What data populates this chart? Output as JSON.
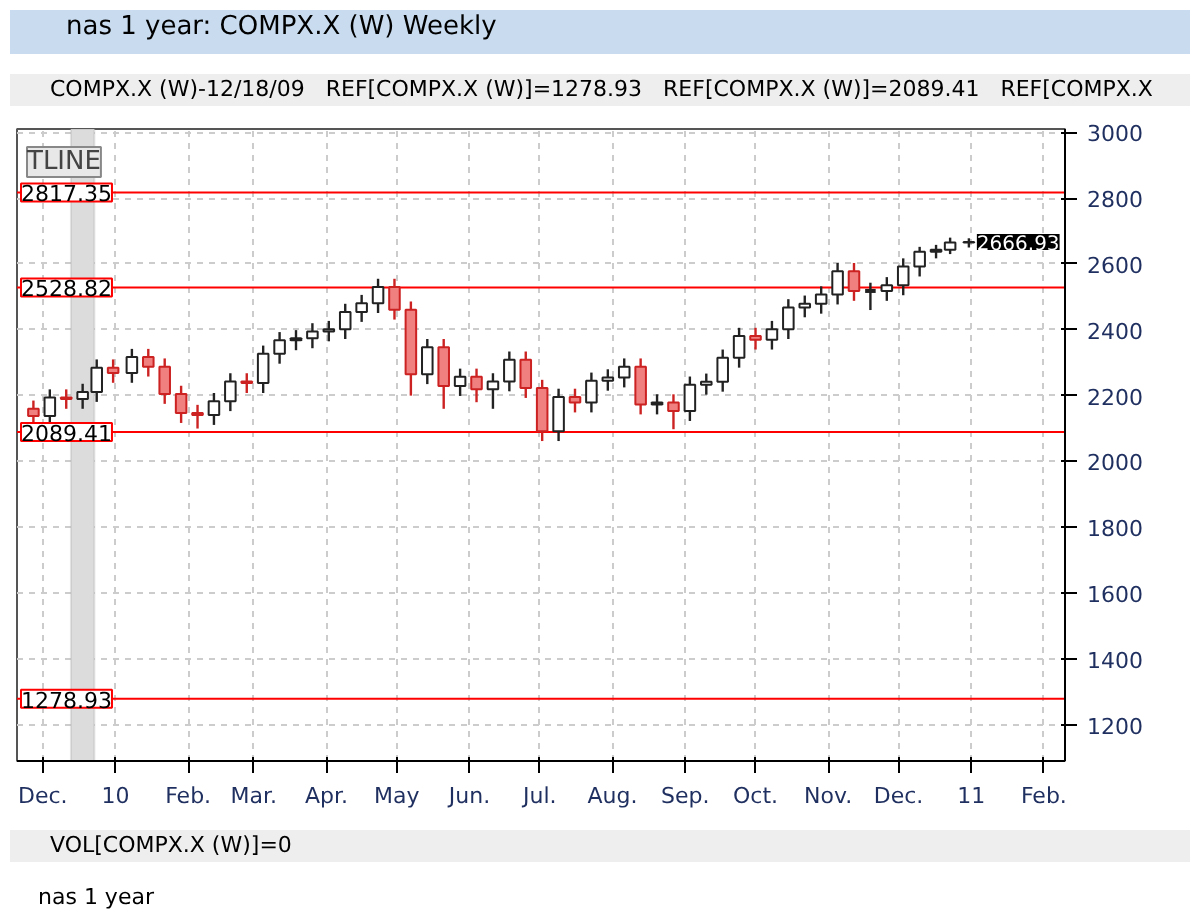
{
  "chart_data": {
    "type": "candlestick",
    "title": "nas 1 year: COMPX.X (W) Weekly",
    "annotations": [
      "COMPX.X (W)-12/18/09",
      "REF[COMPX.X (W)]=1278.93",
      "REF[COMPX.X (W)]=2089.41",
      "REF[COMPX.X",
      "TLINE",
      "VOL[COMPX.X (W)]=0",
      "nas 1 year",
      {
        "text": "2666.93",
        "x": "2010-12-31",
        "y": 2666.93
      }
    ],
    "x": [
      "2009-11-27",
      "2009-12-04",
      "2009-12-11",
      "2009-12-18",
      "2009-12-24",
      "2009-12-31",
      "2010-01-08",
      "2010-01-15",
      "2010-01-22",
      "2010-01-29",
      "2010-02-05",
      "2010-02-12",
      "2010-02-19",
      "2010-02-26",
      "2010-03-05",
      "2010-03-12",
      "2010-03-19",
      "2010-03-26",
      "2010-04-02",
      "2010-04-09",
      "2010-04-16",
      "2010-04-23",
      "2010-04-30",
      "2010-05-07",
      "2010-05-14",
      "2010-05-21",
      "2010-05-28",
      "2010-06-04",
      "2010-06-11",
      "2010-06-18",
      "2010-06-25",
      "2010-07-02",
      "2010-07-09",
      "2010-07-16",
      "2010-07-23",
      "2010-07-30",
      "2010-08-06",
      "2010-08-13",
      "2010-08-20",
      "2010-08-27",
      "2010-09-03",
      "2010-09-10",
      "2010-09-17",
      "2010-09-24",
      "2010-10-01",
      "2010-10-08",
      "2010-10-15",
      "2010-10-22",
      "2010-10-29",
      "2010-11-05",
      "2010-11-12",
      "2010-11-19",
      "2010-11-26",
      "2010-12-03",
      "2010-12-10",
      "2010-12-17",
      "2010-12-23",
      "2010-12-31"
    ],
    "ohlc": [
      [
        2160,
        2185,
        2108,
        2138
      ],
      [
        2138,
        2219,
        2108,
        2194
      ],
      [
        2194,
        2219,
        2160,
        2190
      ],
      [
        2190,
        2236,
        2160,
        2211
      ],
      [
        2211,
        2310,
        2181,
        2285
      ],
      [
        2285,
        2310,
        2239,
        2269
      ],
      [
        2269,
        2342,
        2239,
        2317
      ],
      [
        2317,
        2342,
        2258,
        2288
      ],
      [
        2288,
        2313,
        2175,
        2205
      ],
      [
        2205,
        2230,
        2117,
        2147
      ],
      [
        2147,
        2172,
        2100,
        2141
      ],
      [
        2141,
        2208,
        2111,
        2183
      ],
      [
        2183,
        2268,
        2153,
        2243
      ],
      [
        2243,
        2268,
        2208,
        2238
      ],
      [
        2238,
        2352,
        2208,
        2327
      ],
      [
        2327,
        2393,
        2297,
        2368
      ],
      [
        2368,
        2399,
        2338,
        2374
      ],
      [
        2374,
        2420,
        2344,
        2395
      ],
      [
        2395,
        2427,
        2365,
        2402
      ],
      [
        2402,
        2479,
        2372,
        2454
      ],
      [
        2454,
        2506,
        2424,
        2481
      ],
      [
        2481,
        2555,
        2451,
        2530
      ],
      [
        2530,
        2555,
        2431,
        2461
      ],
      [
        2461,
        2486,
        2200,
        2265
      ],
      [
        2265,
        2372,
        2235,
        2347
      ],
      [
        2347,
        2372,
        2160,
        2229
      ],
      [
        2229,
        2282,
        2199,
        2257
      ],
      [
        2257,
        2282,
        2180,
        2219
      ],
      [
        2219,
        2268,
        2160,
        2243
      ],
      [
        2243,
        2334,
        2213,
        2309
      ],
      [
        2309,
        2334,
        2193,
        2223
      ],
      [
        2223,
        2248,
        2062,
        2092
      ],
      [
        2092,
        2221,
        2062,
        2196
      ],
      [
        2196,
        2221,
        2149,
        2179
      ],
      [
        2179,
        2270,
        2149,
        2245
      ],
      [
        2245,
        2280,
        2215,
        2255
      ],
      [
        2255,
        2313,
        2225,
        2288
      ],
      [
        2288,
        2313,
        2143,
        2173
      ],
      [
        2173,
        2204,
        2143,
        2179
      ],
      [
        2179,
        2204,
        2098,
        2153
      ],
      [
        2153,
        2258,
        2123,
        2233
      ],
      [
        2233,
        2267,
        2203,
        2242
      ],
      [
        2242,
        2340,
        2212,
        2315
      ],
      [
        2315,
        2406,
        2285,
        2381
      ],
      [
        2381,
        2406,
        2340,
        2370
      ],
      [
        2370,
        2427,
        2340,
        2402
      ],
      [
        2402,
        2493,
        2372,
        2468
      ],
      [
        2468,
        2504,
        2438,
        2479
      ],
      [
        2479,
        2532,
        2449,
        2507
      ],
      [
        2507,
        2603,
        2477,
        2578
      ],
      [
        2578,
        2603,
        2488,
        2518
      ],
      [
        2518,
        2543,
        2460,
        2518
      ],
      [
        2518,
        2560,
        2488,
        2535
      ],
      [
        2535,
        2617,
        2505,
        2592
      ],
      [
        2592,
        2652,
        2562,
        2637
      ],
      [
        2637,
        2658,
        2617,
        2643
      ],
      [
        2643,
        2680,
        2630,
        2665
      ],
      [
        2665,
        2678,
        2650,
        2666.93
      ]
    ],
    "xlim": [
      "2009-11-20",
      "2011-02-10"
    ],
    "xticks": [
      {
        "value": "2009-12-01",
        "label": "Dec."
      },
      {
        "value": "2010-01-01",
        "label": "10"
      },
      {
        "value": "2010-02-01",
        "label": "Feb."
      },
      {
        "value": "2010-03-01",
        "label": "Mar."
      },
      {
        "value": "2010-04-01",
        "label": "Apr."
      },
      {
        "value": "2010-05-01",
        "label": "May"
      },
      {
        "value": "2010-06-01",
        "label": "Jun."
      },
      {
        "value": "2010-07-01",
        "label": "Jul."
      },
      {
        "value": "2010-08-01",
        "label": "Aug."
      },
      {
        "value": "2010-09-01",
        "label": "Sep."
      },
      {
        "value": "2010-10-01",
        "label": "Oct."
      },
      {
        "value": "2010-11-01",
        "label": "Nov."
      },
      {
        "value": "2010-12-01",
        "label": "Dec."
      },
      {
        "value": "2011-01-01",
        "label": "11"
      },
      {
        "value": "2011-02-01",
        "label": "Feb."
      }
    ],
    "ylim": [
      1090,
      3010
    ],
    "yticks": [
      1200,
      1400,
      1600,
      1800,
      2000,
      2200,
      2400,
      2600,
      2800,
      3000
    ],
    "ref_lines": [
      {
        "axis": "y",
        "value": 2817.35,
        "label": "2817.35",
        "color": "#ff0000"
      },
      {
        "axis": "y",
        "value": 2528.82,
        "label": "2528.82",
        "color": "#ff0000"
      },
      {
        "axis": "y",
        "value": 2089.41,
        "label": "2089.41",
        "color": "#ff0000"
      },
      {
        "axis": "y",
        "value": 1278.93,
        "label": "1278.93",
        "color": "#ff0000"
      }
    ],
    "bands": [
      {
        "axis": "x",
        "from": "2009-12-13",
        "to": "2009-12-23",
        "color": "#dcdcdc"
      }
    ],
    "grid": true
  }
}
